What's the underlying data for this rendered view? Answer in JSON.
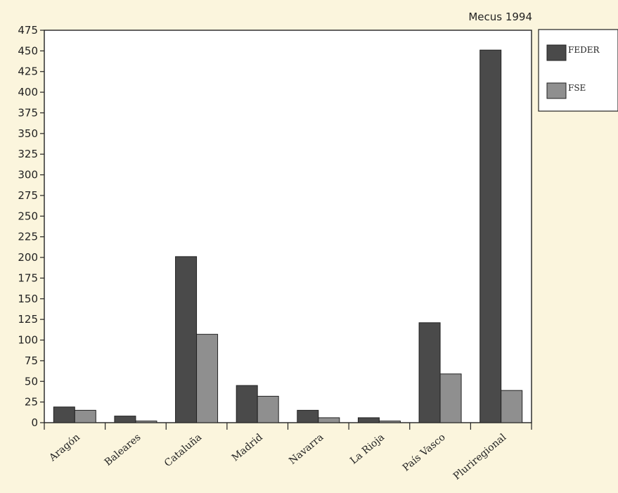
{
  "chart_data": {
    "type": "bar",
    "title": "Mecus 1994",
    "categories": [
      "Aragón",
      "Baleares",
      "Cataluña",
      "Madrid",
      "Navarra",
      "La Rioja",
      "País Vasco",
      "Pluriregional"
    ],
    "series": [
      {
        "name": "FEDER",
        "color": "#4a4a4a",
        "values": [
          19,
          8,
          201,
          45,
          15,
          6,
          121,
          451
        ]
      },
      {
        "name": "FSE",
        "color": "#8f8f8f",
        "values": [
          15,
          2,
          107,
          32,
          6,
          2,
          59,
          39
        ]
      }
    ],
    "ylim": [
      0,
      475
    ],
    "yticks": [
      0,
      25,
      50,
      75,
      100,
      125,
      150,
      175,
      200,
      225,
      250,
      275,
      300,
      325,
      350,
      375,
      400,
      425,
      450,
      475
    ],
    "xlabel": "",
    "ylabel": "",
    "legend_position": "right",
    "grid": false
  }
}
